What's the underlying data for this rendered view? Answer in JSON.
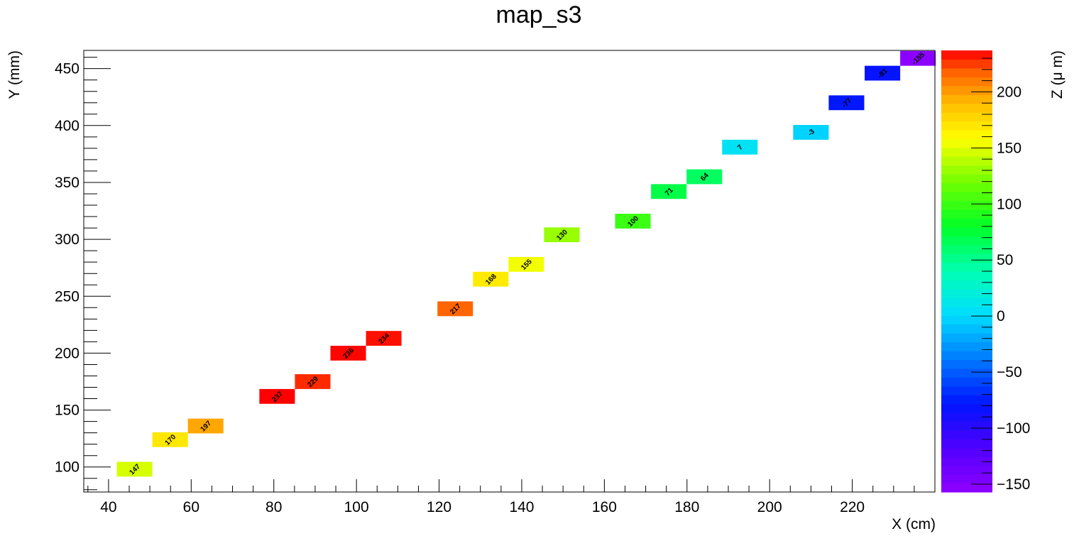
{
  "chart_data": {
    "type": "heatmap",
    "title": "map_s3",
    "xlabel": "X (cm)",
    "ylabel": "Y (mm)",
    "zlabel": "Z (μ m)",
    "xlim": [
      34,
      240
    ],
    "ylim": [
      78,
      466
    ],
    "zlim": [
      -157,
      237
    ],
    "x_ticks": [
      40,
      60,
      80,
      100,
      120,
      140,
      160,
      180,
      200,
      220
    ],
    "y_ticks": [
      100,
      150,
      200,
      250,
      300,
      350,
      400,
      450
    ],
    "z_ticks": [
      -150,
      -100,
      -50,
      0,
      50,
      100,
      150,
      200
    ],
    "cell_width": 8.6,
    "cell_height": 13,
    "grid": false,
    "colorbar": "right",
    "cells": [
      {
        "x": 46.3,
        "y": 98,
        "z": 147
      },
      {
        "x": 54.9,
        "y": 124,
        "z": 170
      },
      {
        "x": 63.5,
        "y": 136,
        "z": 197
      },
      {
        "x": 80.8,
        "y": 162,
        "z": 237
      },
      {
        "x": 89.4,
        "y": 175,
        "z": 229
      },
      {
        "x": 98.0,
        "y": 200,
        "z": 236
      },
      {
        "x": 106.6,
        "y": 213,
        "z": 234
      },
      {
        "x": 123.9,
        "y": 239,
        "z": 217
      },
      {
        "x": 132.5,
        "y": 265,
        "z": 168
      },
      {
        "x": 141.1,
        "y": 278,
        "z": 155
      },
      {
        "x": 149.7,
        "y": 304,
        "z": 130
      },
      {
        "x": 166.9,
        "y": 316,
        "z": 100
      },
      {
        "x": 175.6,
        "y": 342,
        "z": 71
      },
      {
        "x": 184.2,
        "y": 355,
        "z": 64
      },
      {
        "x": 192.8,
        "y": 381,
        "z": 7
      },
      {
        "x": 210.0,
        "y": 394,
        "z": -3
      },
      {
        "x": 218.6,
        "y": 420,
        "z": -77
      },
      {
        "x": 227.3,
        "y": 446,
        "z": -81
      },
      {
        "x": 235.9,
        "y": 459,
        "z": -155
      }
    ]
  }
}
